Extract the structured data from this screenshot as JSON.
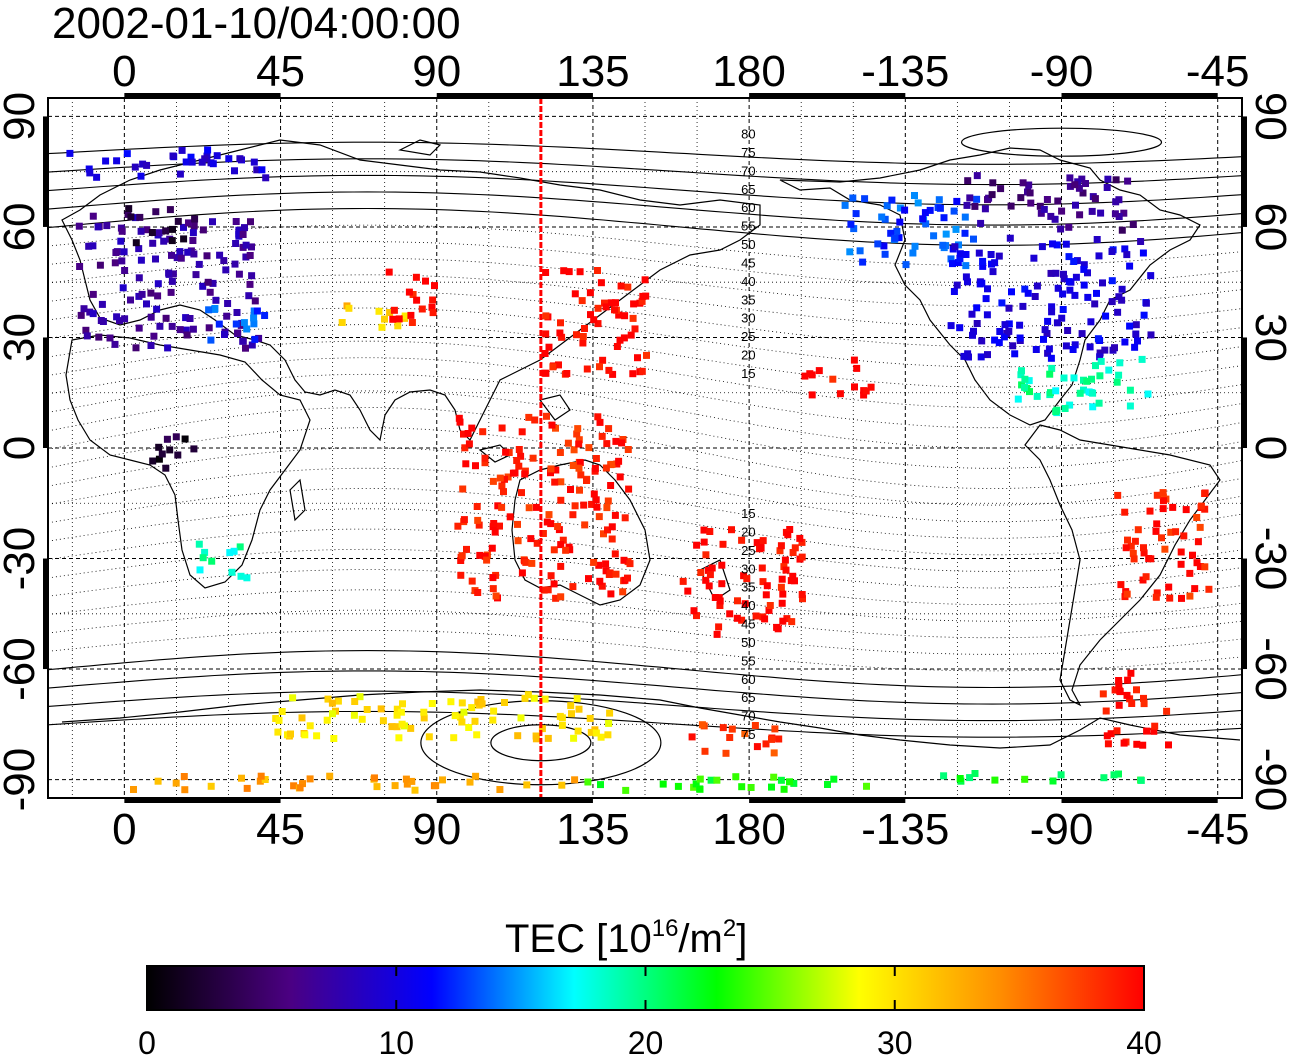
{
  "title": "2002-01-10/04:00:00",
  "colorbar": {
    "label_main": "TEC  [10",
    "label_exp1": "16",
    "label_mid": "/m",
    "label_exp2": "2",
    "label_end": "]",
    "ticks": [
      "0",
      "10",
      "20",
      "30",
      "40"
    ],
    "range": [
      0,
      40
    ],
    "colors": [
      "#000000",
      "#4b0082",
      "#0000ff",
      "#00ffff",
      "#00ff00",
      "#ffff00",
      "#ff8c00",
      "#ff0000"
    ]
  },
  "chart_data": {
    "type": "heatmap",
    "title": "2002-01-10/04:00:00",
    "top_axis_ticks": [
      "0",
      "45",
      "90",
      "135",
      "180",
      "-135",
      "-90",
      "-45"
    ],
    "bottom_axis_ticks": [
      "0",
      "45",
      "90",
      "135",
      "180",
      "-135",
      "-90",
      "-45"
    ],
    "left_axis_ticks": [
      "90",
      "60",
      "30",
      "0",
      "-30",
      "-60",
      "-90"
    ],
    "right_axis_ticks": [
      "90",
      "60",
      "30",
      "0",
      "-30",
      "-60",
      "-90"
    ],
    "lon_range": [
      -22,
      322
    ],
    "lat_range": [
      -95,
      95
    ],
    "grid": true,
    "marker_longitude": 120,
    "magnetic_contour_labels": [
      "80",
      "75",
      "70",
      "65",
      "60",
      "55",
      "50",
      "45",
      "40",
      "35",
      "30",
      "25",
      "20",
      "15",
      "15",
      "20",
      "25",
      "30",
      "35",
      "40",
      "45",
      "50",
      "55",
      "60",
      "65",
      "70",
      "75"
    ],
    "tec_regions": [
      {
        "lon": [
          -14,
          38
        ],
        "lat": [
          28,
          64
        ],
        "tec": 7
      },
      {
        "lon": [
          0,
          20
        ],
        "lat": [
          56,
          66
        ],
        "tec": 3
      },
      {
        "lon": [
          20,
          40
        ],
        "lat": [
          30,
          40
        ],
        "tec": 13
      },
      {
        "lon": [
          -18,
          40
        ],
        "lat": [
          74,
          82
        ],
        "tec": 10
      },
      {
        "lon": [
          4,
          20
        ],
        "lat": [
          -5,
          5
        ],
        "tec": 2
      },
      {
        "lon": [
          20,
          35
        ],
        "lat": [
          -35,
          -25
        ],
        "tec": 19
      },
      {
        "lon": [
          60,
          80
        ],
        "lat": [
          33,
          40
        ],
        "tec": 31
      },
      {
        "lon": [
          75,
          90
        ],
        "lat": [
          35,
          50
        ],
        "tec": 40
      },
      {
        "lon": [
          120,
          150
        ],
        "lat": [
          20,
          50
        ],
        "tec": 40
      },
      {
        "lon": [
          95,
          145
        ],
        "lat": [
          -40,
          10
        ],
        "tec": 39
      },
      {
        "lon": [
          160,
          195
        ],
        "lat": [
          -50,
          -20
        ],
        "tec": 40
      },
      {
        "lon": [
          195,
          215
        ],
        "lat": [
          15,
          25
        ],
        "tec": 40
      },
      {
        "lon": [
          205,
          245
        ],
        "lat": [
          50,
          70
        ],
        "tec": 13
      },
      {
        "lon": [
          237,
          295
        ],
        "lat": [
          25,
          58
        ],
        "tec": 10
      },
      {
        "lon": [
          240,
          290
        ],
        "lat": [
          60,
          75
        ],
        "tec": 6
      },
      {
        "lon": [
          255,
          295
        ],
        "lat": [
          10,
          25
        ],
        "tec": 19
      },
      {
        "lon": [
          285,
          312
        ],
        "lat": [
          -40,
          -10
        ],
        "tec": 39
      },
      {
        "lon": [
          280,
          300
        ],
        "lat": [
          -80,
          -60
        ],
        "tec": 40
      },
      {
        "lon": [
          0,
          60
        ],
        "lat": [
          -92,
          -88
        ],
        "tec": 33
      },
      {
        "lon": [
          70,
          130
        ],
        "lat": [
          -92,
          -88
        ],
        "tec": 33
      },
      {
        "lon": [
          130,
          215
        ],
        "lat": [
          -92,
          -88
        ],
        "tec": 23
      },
      {
        "lon": [
          235,
          300
        ],
        "lat": [
          -90,
          -87
        ],
        "tec": 22
      },
      {
        "lon": [
          40,
          140
        ],
        "lat": [
          -78,
          -66
        ],
        "tec": 30
      },
      {
        "lon": [
          160,
          190
        ],
        "lat": [
          -82,
          -74
        ],
        "tec": 38
      }
    ]
  }
}
